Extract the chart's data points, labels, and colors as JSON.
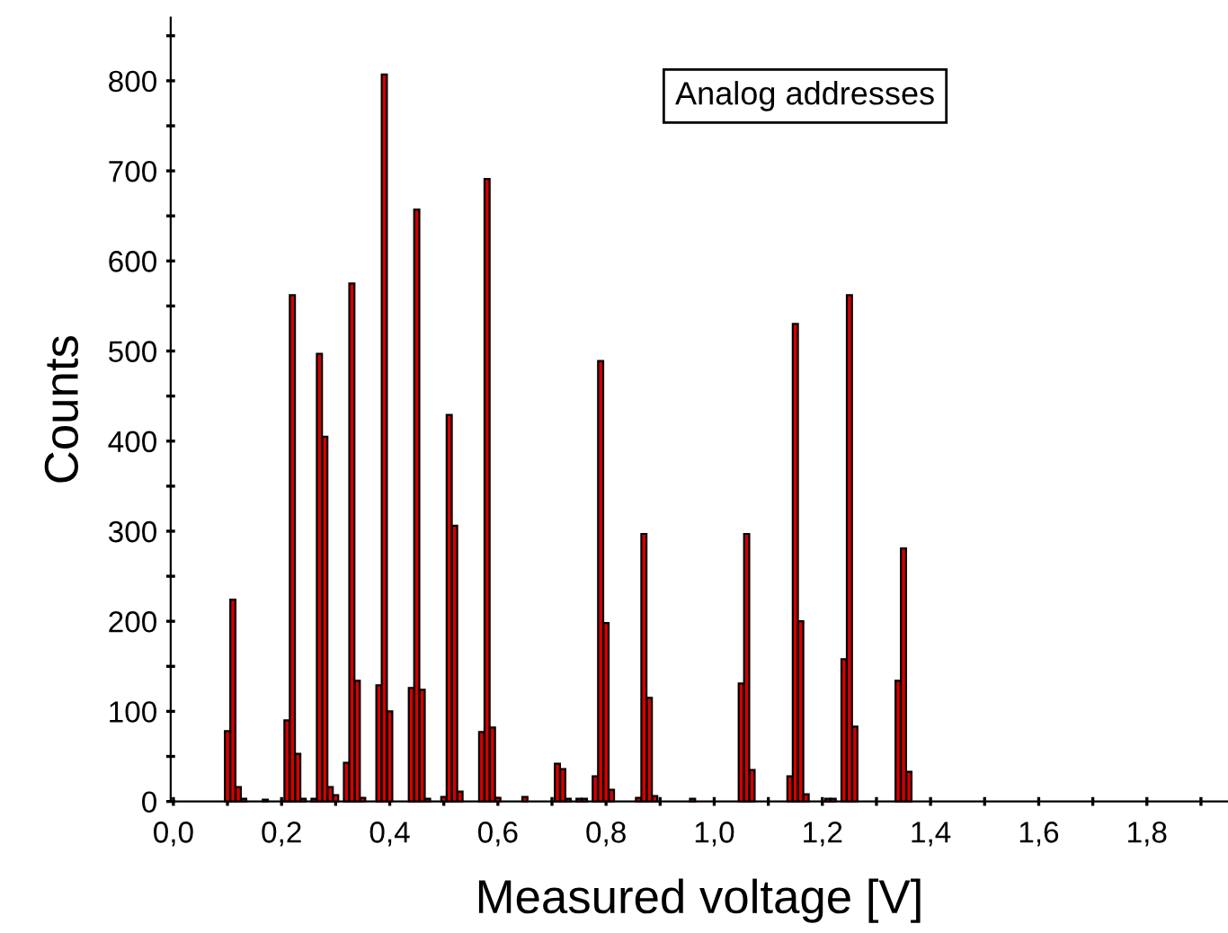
{
  "chart_data": {
    "type": "bar",
    "xlabel": "Measured voltage [V]",
    "ylabel": "Counts",
    "annotations": [
      "Analog addresses"
    ],
    "color": "#d40000",
    "x": [
      0.1,
      0.11,
      0.12,
      0.13,
      0.17,
      0.21,
      0.22,
      0.23,
      0.24,
      0.26,
      0.27,
      0.28,
      0.29,
      0.3,
      0.32,
      0.33,
      0.34,
      0.35,
      0.38,
      0.39,
      0.4,
      0.44,
      0.45,
      0.46,
      0.47,
      0.5,
      0.51,
      0.52,
      0.53,
      0.57,
      0.58,
      0.59,
      0.6,
      0.65,
      0.71,
      0.72,
      0.73,
      0.75,
      0.76,
      0.78,
      0.79,
      0.8,
      0.81,
      0.86,
      0.87,
      0.88,
      0.89,
      0.96,
      1.05,
      1.06,
      1.07,
      1.14,
      1.15,
      1.16,
      1.17,
      1.21,
      1.22,
      1.24,
      1.25,
      1.26,
      1.34,
      1.35,
      1.36
    ],
    "values": [
      78,
      224,
      16,
      3,
      2,
      90,
      562,
      53,
      3,
      3,
      497,
      405,
      16,
      7,
      43,
      575,
      134,
      4,
      129,
      807,
      100,
      126,
      657,
      124,
      3,
      5,
      429,
      306,
      11,
      77,
      691,
      82,
      4,
      5,
      42,
      36,
      3,
      3,
      3,
      28,
      489,
      198,
      13,
      4,
      297,
      115,
      6,
      3,
      131,
      297,
      35,
      28,
      530,
      200,
      8,
      3,
      3,
      158,
      562,
      83,
      134,
      281,
      33
    ],
    "xlim": [
      -0.005,
      1.95
    ],
    "xticks": [
      {
        "value": 0.0,
        "label": "0,0"
      },
      {
        "value": 0.1,
        "label": null
      },
      {
        "value": 0.2,
        "label": "0,2"
      },
      {
        "value": 0.3,
        "label": null
      },
      {
        "value": 0.4,
        "label": "0,4"
      },
      {
        "value": 0.5,
        "label": null
      },
      {
        "value": 0.6,
        "label": "0,6"
      },
      {
        "value": 0.7,
        "label": null
      },
      {
        "value": 0.8,
        "label": "0,8"
      },
      {
        "value": 0.9,
        "label": null
      },
      {
        "value": 1.0,
        "label": "1,0"
      },
      {
        "value": 1.1,
        "label": null
      },
      {
        "value": 1.2,
        "label": "1,2"
      },
      {
        "value": 1.3,
        "label": null
      },
      {
        "value": 1.4,
        "label": "1,4"
      },
      {
        "value": 1.5,
        "label": null
      },
      {
        "value": 1.6,
        "label": "1,6"
      },
      {
        "value": 1.7,
        "label": null
      },
      {
        "value": 1.8,
        "label": "1,8"
      },
      {
        "value": 1.9,
        "label": null
      }
    ],
    "ylim": [
      0,
      870
    ],
    "yticks": [
      0,
      {
        "value": 50,
        "label": null
      },
      100,
      {
        "value": 150,
        "label": null
      },
      200,
      {
        "value": 250,
        "label": null
      },
      300,
      {
        "value": 350,
        "label": null
      },
      400,
      {
        "value": 450,
        "label": null
      },
      500,
      {
        "value": 550,
        "label": null
      },
      600,
      {
        "value": 650,
        "label": null
      },
      700,
      {
        "value": 750,
        "label": null
      },
      800,
      {
        "value": 850,
        "label": null
      }
    ],
    "grid": false,
    "legend": false
  }
}
